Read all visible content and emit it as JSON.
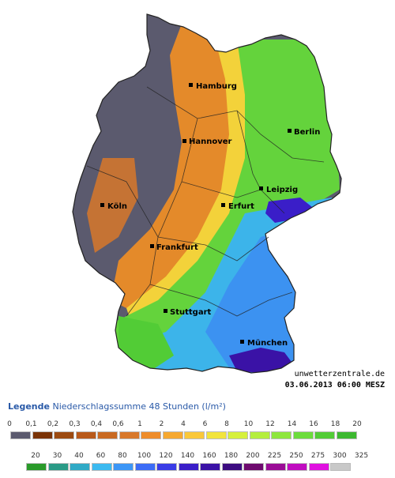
{
  "map": {
    "cities": [
      {
        "name": "Hamburg"
      },
      {
        "name": "Berlin"
      },
      {
        "name": "Hannover"
      },
      {
        "name": "Leipzig"
      },
      {
        "name": "Köln"
      },
      {
        "name": "Erfurt"
      },
      {
        "name": "Frankfurt"
      },
      {
        "name": "Stuttgart"
      },
      {
        "name": "München"
      }
    ],
    "credit": "unwetterzentrale.de",
    "timestamp": "03.06.2013 06:00 MESZ"
  },
  "legend": {
    "title": "Legende",
    "subtitle": "Niederschlagssumme 48 Stunden",
    "unit": "(l/m²)",
    "row1": {
      "ticks": [
        "0",
        "0,1",
        "0,2",
        "0,3",
        "0,4",
        "0,6",
        "1",
        "2",
        "4",
        "6",
        "8",
        "10",
        "12",
        "14",
        "16",
        "18",
        "20"
      ],
      "colors": [
        "#5b5a6e",
        "#7a3306",
        "#9c4a10",
        "#b8591a",
        "#c96a22",
        "#d8782a",
        "#ee8c2a",
        "#f6a830",
        "#fac83a",
        "#f2e43c",
        "#d6f03c",
        "#b4ee3e",
        "#8ee63e",
        "#6cdc3c",
        "#52cc36",
        "#3cb830"
      ]
    },
    "row2": {
      "ticks": [
        "20",
        "30",
        "40",
        "60",
        "80",
        "100",
        "120",
        "140",
        "160",
        "180",
        "200",
        "225",
        "250",
        "275",
        "300",
        "325"
      ],
      "colors": [
        "#2a9a2a",
        "#2a9a86",
        "#30aac6",
        "#3cbaf0",
        "#3c96f6",
        "#3c6cf6",
        "#3a3ce6",
        "#3a1ec8",
        "#3a12a6",
        "#3c0c80",
        "#6e0a6e",
        "#9a0c96",
        "#c00cc0",
        "#e010e0",
        "#c8c8c8"
      ]
    }
  }
}
